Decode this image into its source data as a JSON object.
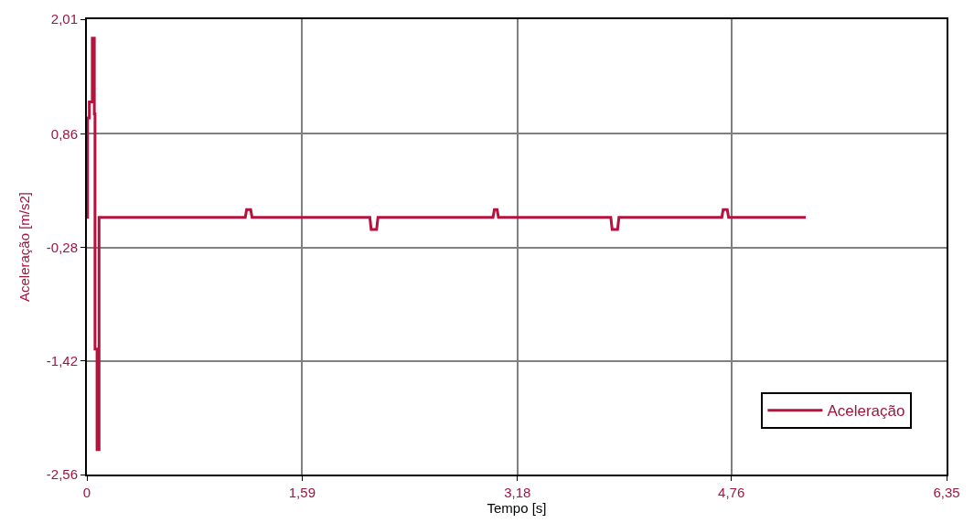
{
  "chart_data": {
    "type": "line",
    "xlabel": "Tempo [s]",
    "ylabel": "Aceleração [m/s2]",
    "x": [
      0.0,
      0.005,
      0.005,
      0.018,
      0.018,
      0.04,
      0.04,
      0.055,
      0.055,
      0.06,
      0.06,
      0.075,
      0.075,
      0.09,
      0.09,
      1.17,
      1.18,
      1.21,
      1.22,
      2.09,
      2.1,
      2.14,
      2.15,
      3.0,
      3.01,
      3.03,
      3.04,
      3.87,
      3.88,
      3.92,
      3.93,
      4.69,
      4.7,
      4.73,
      4.74,
      5.31
    ],
    "series": [
      {
        "name": "Aceleração",
        "color": "#b5123e",
        "values": [
          0.02,
          0.02,
          1.02,
          1.02,
          1.18,
          1.18,
          1.82,
          1.82,
          1.06,
          1.06,
          -1.3,
          -1.3,
          -2.31,
          -2.31,
          0.02,
          0.02,
          0.1,
          0.1,
          0.02,
          0.02,
          -0.1,
          -0.1,
          0.02,
          0.02,
          0.1,
          0.1,
          0.02,
          0.02,
          -0.1,
          -0.1,
          0.02,
          0.02,
          0.1,
          0.1,
          0.02,
          0.02
        ]
      }
    ],
    "xlim": [
      0,
      6.35
    ],
    "ylim": [
      -2.56,
      2.01
    ],
    "xticks": [
      {
        "value": 0,
        "label": "0"
      },
      {
        "value": 1.59,
        "label": "1,59"
      },
      {
        "value": 3.18,
        "label": "3,18"
      },
      {
        "value": 4.76,
        "label": "4,76"
      },
      {
        "value": 6.35,
        "label": "6,35"
      }
    ],
    "yticks": [
      {
        "value": -2.56,
        "label": "-2,56"
      },
      {
        "value": -1.42,
        "label": "-1,42"
      },
      {
        "value": -0.28,
        "label": "-0,28"
      },
      {
        "value": 0.86,
        "label": "0,86"
      },
      {
        "value": 2.01,
        "label": "2,01"
      }
    ],
    "grid": true,
    "legend": "bottom right",
    "marker": "none",
    "line_style": "solid"
  }
}
